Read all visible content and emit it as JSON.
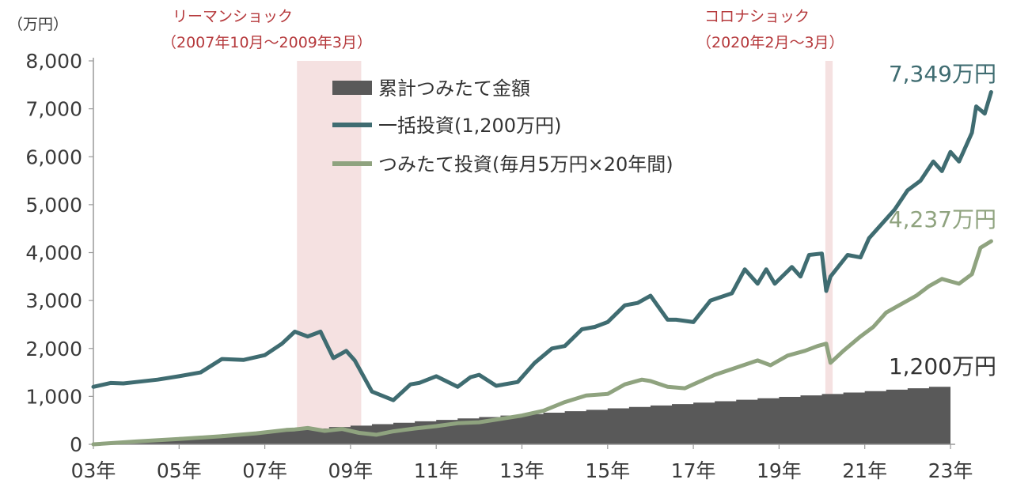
{
  "chart_data": {
    "type": "line",
    "unit_label": "（万円）",
    "y_ticks": [
      "0",
      "1,000",
      "2,000",
      "3,000",
      "4,000",
      "5,000",
      "6,000",
      "7,000",
      "8,000"
    ],
    "ylim": [
      0,
      8000
    ],
    "x_ticks": [
      "03年",
      "05年",
      "07年",
      "09年",
      "11年",
      "13年",
      "15年",
      "17年",
      "19年",
      "21年",
      "23年"
    ],
    "xlim": [
      2003.0,
      2023.0
    ],
    "shocks": [
      {
        "title": "リーマンショック",
        "period": "（2007年10月～2009年3月）",
        "start": 2007.75,
        "end": 2009.25
      },
      {
        "title": "コロナショック",
        "period": "（2020年2月～3月）",
        "start": 2020.08,
        "end": 2020.25
      }
    ],
    "series": [
      {
        "name": "累計つみたて金額",
        "type": "area",
        "color": "#595959",
        "x": [
          2003.0,
          2023.0
        ],
        "values": [
          0,
          1200
        ]
      },
      {
        "name": "一括投資(1,200万円)",
        "type": "line",
        "color": "#3f6c71",
        "x": [
          2003.0,
          2003.4,
          2003.7,
          2004.0,
          2004.5,
          2005.0,
          2005.5,
          2006.0,
          2006.5,
          2007.0,
          2007.4,
          2007.7,
          2008.0,
          2008.3,
          2008.6,
          2008.9,
          2009.1,
          2009.5,
          2010.0,
          2010.4,
          2010.6,
          2011.0,
          2011.5,
          2011.8,
          2012.0,
          2012.4,
          2012.9,
          2013.3,
          2013.7,
          2014.0,
          2014.4,
          2014.7,
          2015.0,
          2015.4,
          2015.7,
          2016.0,
          2016.4,
          2016.6,
          2017.0,
          2017.4,
          2017.9,
          2018.2,
          2018.5,
          2018.7,
          2018.9,
          2019.3,
          2019.5,
          2019.7,
          2020.0,
          2020.1,
          2020.2,
          2020.6,
          2020.9,
          2021.1,
          2021.4,
          2021.7,
          2022.0,
          2022.3,
          2022.6,
          2022.8,
          2023.0,
          2023.2,
          2023.5,
          2023.6,
          2023.8,
          2023.95
        ],
        "values": [
          1200,
          1280,
          1270,
          1300,
          1350,
          1420,
          1500,
          1780,
          1760,
          1860,
          2100,
          2350,
          2250,
          2350,
          1800,
          1950,
          1750,
          1100,
          920,
          1250,
          1280,
          1420,
          1200,
          1400,
          1450,
          1220,
          1300,
          1700,
          2000,
          2050,
          2400,
          2450,
          2550,
          2900,
          2950,
          3100,
          2600,
          2600,
          2550,
          3000,
          3150,
          3650,
          3350,
          3650,
          3350,
          3700,
          3500,
          3950,
          3980,
          3200,
          3500,
          3950,
          3900,
          4300,
          4600,
          4900,
          5300,
          5500,
          5900,
          5700,
          6100,
          5900,
          6500,
          7050,
          6900,
          7349
        ]
      },
      {
        "name": "つみたて投資(毎月5万円×20年間)",
        "type": "line",
        "color": "#8fa37f",
        "x": [
          2003.0,
          2004.0,
          2005.0,
          2006.0,
          2006.8,
          2007.5,
          2007.7,
          2008.0,
          2008.4,
          2008.8,
          2009.2,
          2009.6,
          2010.0,
          2010.5,
          2011.0,
          2011.5,
          2012.0,
          2012.5,
          2013.0,
          2013.5,
          2014.0,
          2014.5,
          2015.0,
          2015.4,
          2015.8,
          2016.0,
          2016.4,
          2016.8,
          2017.0,
          2017.5,
          2018.0,
          2018.5,
          2018.8,
          2019.2,
          2019.6,
          2019.9,
          2020.1,
          2020.2,
          2020.5,
          2020.9,
          2021.2,
          2021.5,
          2021.9,
          2022.2,
          2022.5,
          2022.8,
          2023.0,
          2023.2,
          2023.5,
          2023.7,
          2023.95
        ],
        "values": [
          0,
          60,
          110,
          170,
          230,
          300,
          310,
          340,
          280,
          320,
          240,
          200,
          270,
          330,
          380,
          440,
          460,
          530,
          600,
          700,
          880,
          1020,
          1050,
          1250,
          1350,
          1320,
          1200,
          1170,
          1250,
          1450,
          1600,
          1750,
          1650,
          1850,
          1950,
          2050,
          2100,
          1700,
          1950,
          2250,
          2450,
          2750,
          2950,
          3100,
          3300,
          3450,
          3400,
          3350,
          3550,
          4100,
          4237
        ]
      }
    ],
    "end_labels": [
      "7,349万円",
      "4,237万円",
      "1,200万円"
    ]
  }
}
